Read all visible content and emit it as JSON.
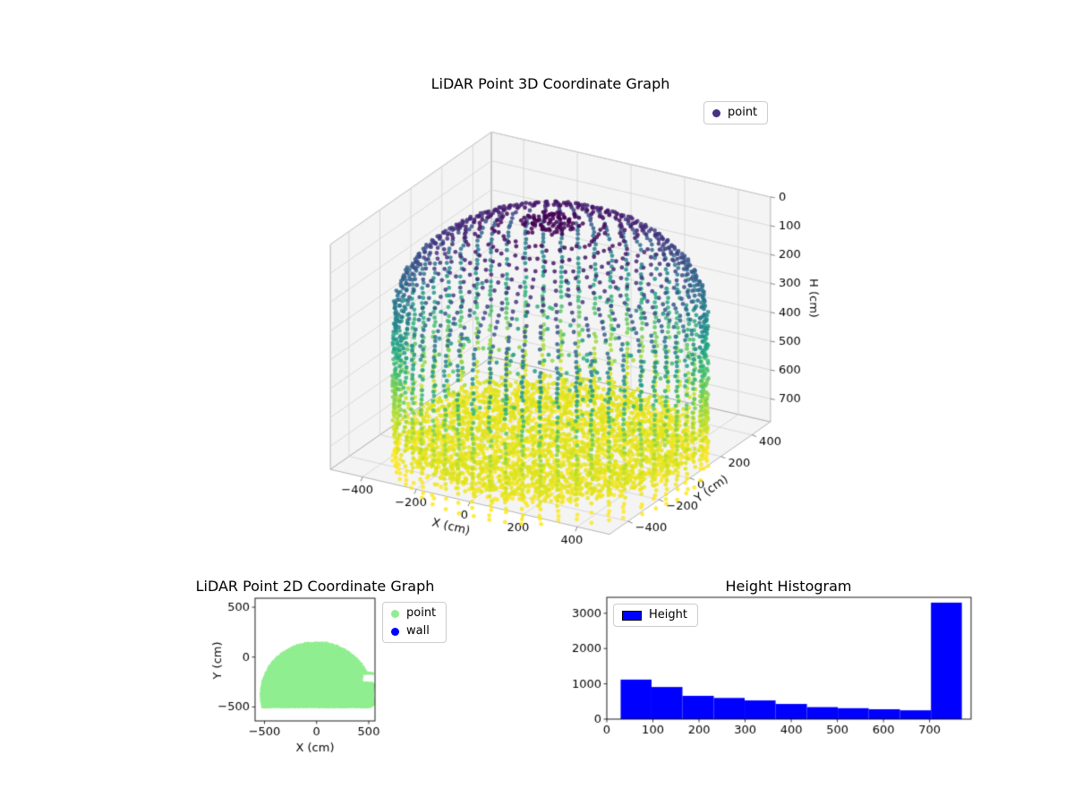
{
  "figure": {
    "background": "#ffffff"
  },
  "chart_data": [
    {
      "id": "lidar-3d",
      "type": "scatter3d",
      "title": "LiDAR Point 3D Coordinate Graph",
      "xlabel": "X (cm)",
      "ylabel": "Y (cm)",
      "zlabel": "H (cm)",
      "xticks": [
        -400,
        -200,
        0,
        200,
        400
      ],
      "yticks": [
        -400,
        -200,
        0,
        200,
        400
      ],
      "zticks": [
        0,
        100,
        200,
        300,
        400,
        500,
        600,
        700
      ],
      "xlim": [
        -520,
        520
      ],
      "ylim": [
        -520,
        520
      ],
      "zlim": [
        0,
        780
      ],
      "zaxis_inverted": true,
      "grid": true,
      "view": {
        "azim": -60,
        "elev": 30
      },
      "legend": [
        {
          "label": "point",
          "marker_color": "#46327e"
        }
      ],
      "legend_position": "upper right outside axes",
      "colormap": "viridis",
      "colormap_stops": [
        "#440154",
        "#482878",
        "#3e4989",
        "#31688e",
        "#26828e",
        "#1f9e89",
        "#35b779",
        "#6ece58",
        "#a5db36",
        "#d2e21b",
        "#fde725"
      ],
      "point_cloud": {
        "description": "Room scan: domed ceiling at H=0 (dark purple), vertical wall columns of radius ~505 cm colored by height (viridis), dense yellow floor disk at H~730-800, sparse interior points",
        "wall_radius": 505,
        "dome_height": 330,
        "columns": 56,
        "z_min": 0,
        "z_max": 850,
        "z_step": 17,
        "floor_radius": 468,
        "floor_z": [
          730,
          800
        ],
        "floor_step": 16,
        "inner_scatter_count": 160,
        "color_value_max": 800,
        "marker_size_px": 2.4,
        "alpha": 0.85
      }
    },
    {
      "id": "lidar-2d",
      "type": "scatter",
      "title": "LiDAR Point 2D Coordinate Graph",
      "xlabel": "X (cm)",
      "ylabel": "Y (cm)",
      "xticks": [
        -500,
        0,
        500
      ],
      "yticks": [
        -500,
        0,
        500
      ],
      "xlim": [
        -590,
        560
      ],
      "ylim": [
        -640,
        590
      ],
      "legend": [
        {
          "label": "point",
          "marker_color": "#90ee90"
        },
        {
          "label": "wall",
          "marker_color": "#0000ff"
        }
      ],
      "blob": {
        "description": "Dense light-green footprint: circular dome of radius ~530 cm centered at (0,-380), flat cut at y=-500, top at y~150, right-side extension to x~548 and a notch near (470,-210)",
        "circle_radius": 530,
        "circle_cy": -380,
        "y_bottom": -500,
        "y_top": 150,
        "right_ext_x": 548,
        "right_ext_y": [
          -490,
          -155
        ],
        "notch": {
          "x_min": 438,
          "y_min": -258,
          "y_max": -168
        },
        "step": 12,
        "marker_size_px": 1.7
      }
    },
    {
      "id": "height-hist",
      "type": "bar",
      "title": "Height Histogram",
      "legend": [
        {
          "label": "Height",
          "patch_color": "#0000ff"
        }
      ],
      "legend_position": "upper left inside axes",
      "bar_color": "#0000ff",
      "bin_edges": [
        30,
        97,
        164,
        232,
        299,
        366,
        434,
        501,
        568,
        636,
        703,
        770
      ],
      "counts": [
        1120,
        910,
        660,
        600,
        530,
        430,
        340,
        310,
        280,
        250,
        3300
      ],
      "xticks": [
        0,
        100,
        200,
        300,
        400,
        500,
        600,
        700
      ],
      "yticks": [
        0,
        1000,
        2000,
        3000
      ],
      "xlim": [
        0,
        790
      ],
      "ylim": [
        0,
        3450
      ]
    }
  ]
}
